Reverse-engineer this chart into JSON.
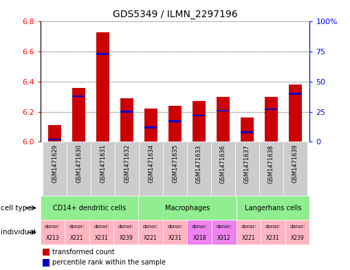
{
  "title": "GDS5349 / ILMN_2297196",
  "samples": [
    "GSM1471629",
    "GSM1471630",
    "GSM1471631",
    "GSM1471632",
    "GSM1471634",
    "GSM1471635",
    "GSM1471633",
    "GSM1471636",
    "GSM1471637",
    "GSM1471638",
    "GSM1471639"
  ],
  "red_values": [
    6.11,
    6.36,
    6.73,
    6.29,
    6.22,
    6.24,
    6.27,
    6.3,
    6.16,
    6.3,
    6.38
  ],
  "blue_values": [
    2,
    38,
    73,
    25,
    12,
    17,
    22,
    26,
    8,
    27,
    40
  ],
  "ylim_left": [
    6.0,
    6.8
  ],
  "ylim_right": [
    0,
    100
  ],
  "yticks_left": [
    6.0,
    6.2,
    6.4,
    6.6,
    6.8
  ],
  "yticks_right": [
    0,
    25,
    50,
    75,
    100
  ],
  "ytick_labels_right": [
    "0",
    "25",
    "50",
    "75",
    "100%"
  ],
  "individuals": [
    "X213",
    "X221",
    "X231",
    "X239",
    "X221",
    "X231",
    "X218",
    "X312",
    "X221",
    "X231",
    "X239"
  ],
  "individual_colors": [
    "#FFB6C1",
    "#FFB6C1",
    "#FFB6C1",
    "#FFB6C1",
    "#FFB6C1",
    "#FFB6C1",
    "#EE82EE",
    "#EE82EE",
    "#FFB6C1",
    "#FFB6C1",
    "#FFB6C1"
  ],
  "cell_groups": [
    {
      "label": "CD14+ dendritic cells",
      "start": 0,
      "end": 4
    },
    {
      "label": "Macrophages",
      "start": 4,
      "end": 8
    },
    {
      "label": "Langerhans cells",
      "start": 8,
      "end": 11
    }
  ],
  "bar_color": "#CC0000",
  "blue_color": "#0000CC",
  "base_value": 6.0,
  "gray_color": "#CCCCCC",
  "green_color": "#90EE90",
  "pink_color": "#FFB6C1",
  "purple_color": "#EE82EE",
  "background_color": "#FFFFFF"
}
